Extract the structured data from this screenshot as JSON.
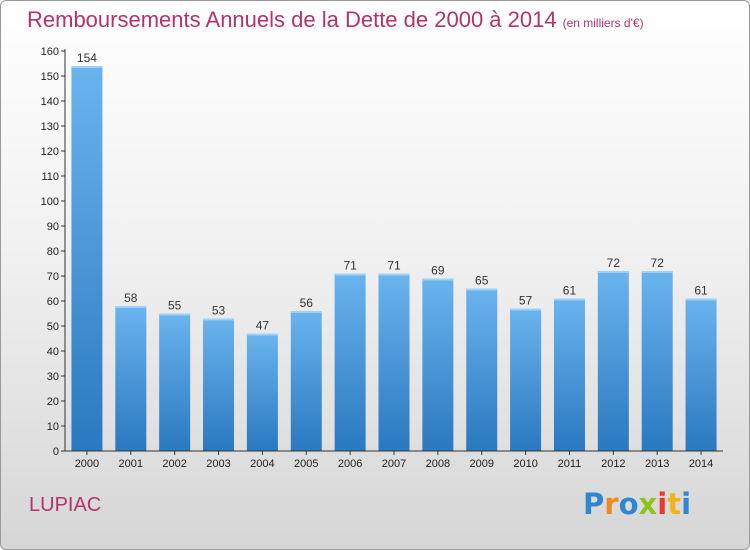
{
  "chart_data": {
    "type": "bar",
    "title": "Remboursements Annuels de la Dette de 2000 à 2014",
    "subtitle": "(en milliers d'€)",
    "categories": [
      "2000",
      "2001",
      "2002",
      "2003",
      "2004",
      "2005",
      "2006",
      "2007",
      "2008",
      "2009",
      "2010",
      "2011",
      "2012",
      "2013",
      "2014"
    ],
    "values": [
      154,
      58,
      55,
      53,
      47,
      56,
      71,
      71,
      69,
      65,
      57,
      61,
      72,
      72,
      61
    ],
    "ylim": [
      0,
      160
    ],
    "ytick_step": 10,
    "grid": false,
    "bar_color": "#3d8fd6",
    "bar_color_light": "#6ab4ee",
    "xlabel": "",
    "ylabel": ""
  },
  "commune": "LUPIAC",
  "logo": {
    "letters": [
      "P",
      "r",
      "o",
      "x",
      "i",
      "t",
      "i"
    ],
    "colors": [
      "#2f87cf",
      "#f08a1c",
      "#2f87cf",
      "#8dc21f",
      "#e63b2e",
      "#f0b31c",
      "#2f87cf"
    ]
  },
  "colors": {
    "title": "#b5336a",
    "axis": "#333333"
  }
}
